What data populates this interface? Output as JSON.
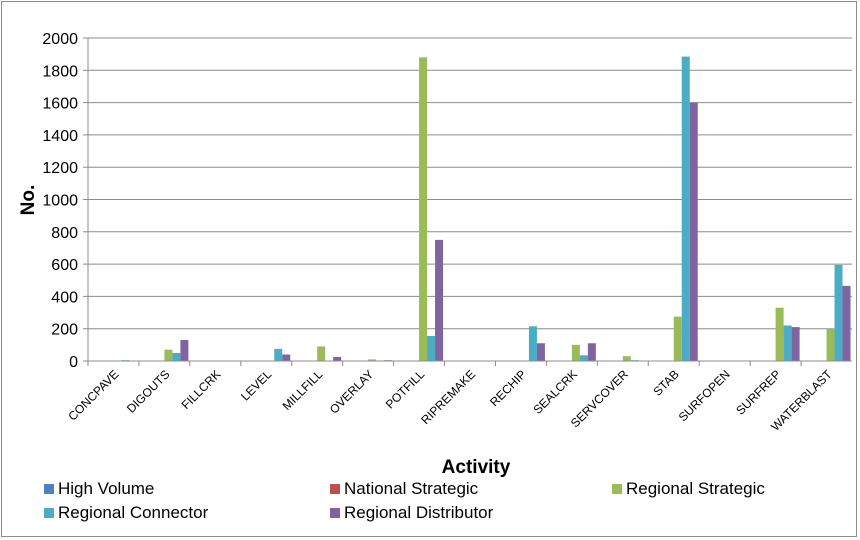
{
  "chart_data": {
    "type": "bar",
    "xlabel": "Activity",
    "ylabel": "No.",
    "ylim": [
      0,
      2000
    ],
    "yticks": [
      "0",
      "200",
      "400",
      "600",
      "800",
      "1000",
      "1200",
      "1400",
      "1600",
      "1800",
      "2000"
    ],
    "grid": "horizontal",
    "legend_position": "bottom",
    "categories": [
      "CONCPAVE",
      "DIGOUTS",
      "FILLCRK",
      "LEVEL",
      "MILLFILL",
      "OVERLAY",
      "POTFILL",
      "RIPREMAKE",
      "RECHIP",
      "SEALCRK",
      "SERVCOVER",
      "STAB",
      "SURFOPEN",
      "SURFREP",
      "WATERBLAST"
    ],
    "series": [
      {
        "name": "High Volume",
        "color": "#4f81bd",
        "values": [
          0,
          0,
          0,
          0,
          0,
          0,
          0,
          0,
          0,
          0,
          0,
          0,
          0,
          0,
          0
        ]
      },
      {
        "name": "National Strategic",
        "color": "#c0504d",
        "values": [
          0,
          0,
          0,
          0,
          0,
          0,
          0,
          0,
          0,
          0,
          0,
          0,
          0,
          0,
          0
        ]
      },
      {
        "name": "Regional Strategic",
        "color": "#9bbb59",
        "values": [
          0,
          70,
          0,
          0,
          90,
          10,
          1880,
          3,
          0,
          100,
          30,
          275,
          0,
          330,
          200
        ]
      },
      {
        "name": "Regional Connector",
        "color": "#4bacc6",
        "values": [
          5,
          50,
          0,
          75,
          0,
          0,
          155,
          3,
          215,
          35,
          5,
          1885,
          0,
          220,
          595
        ]
      },
      {
        "name": "Regional Distributor",
        "color": "#8064a2",
        "values": [
          3,
          130,
          0,
          40,
          25,
          5,
          750,
          3,
          110,
          110,
          3,
          1600,
          0,
          210,
          465
        ]
      }
    ]
  }
}
